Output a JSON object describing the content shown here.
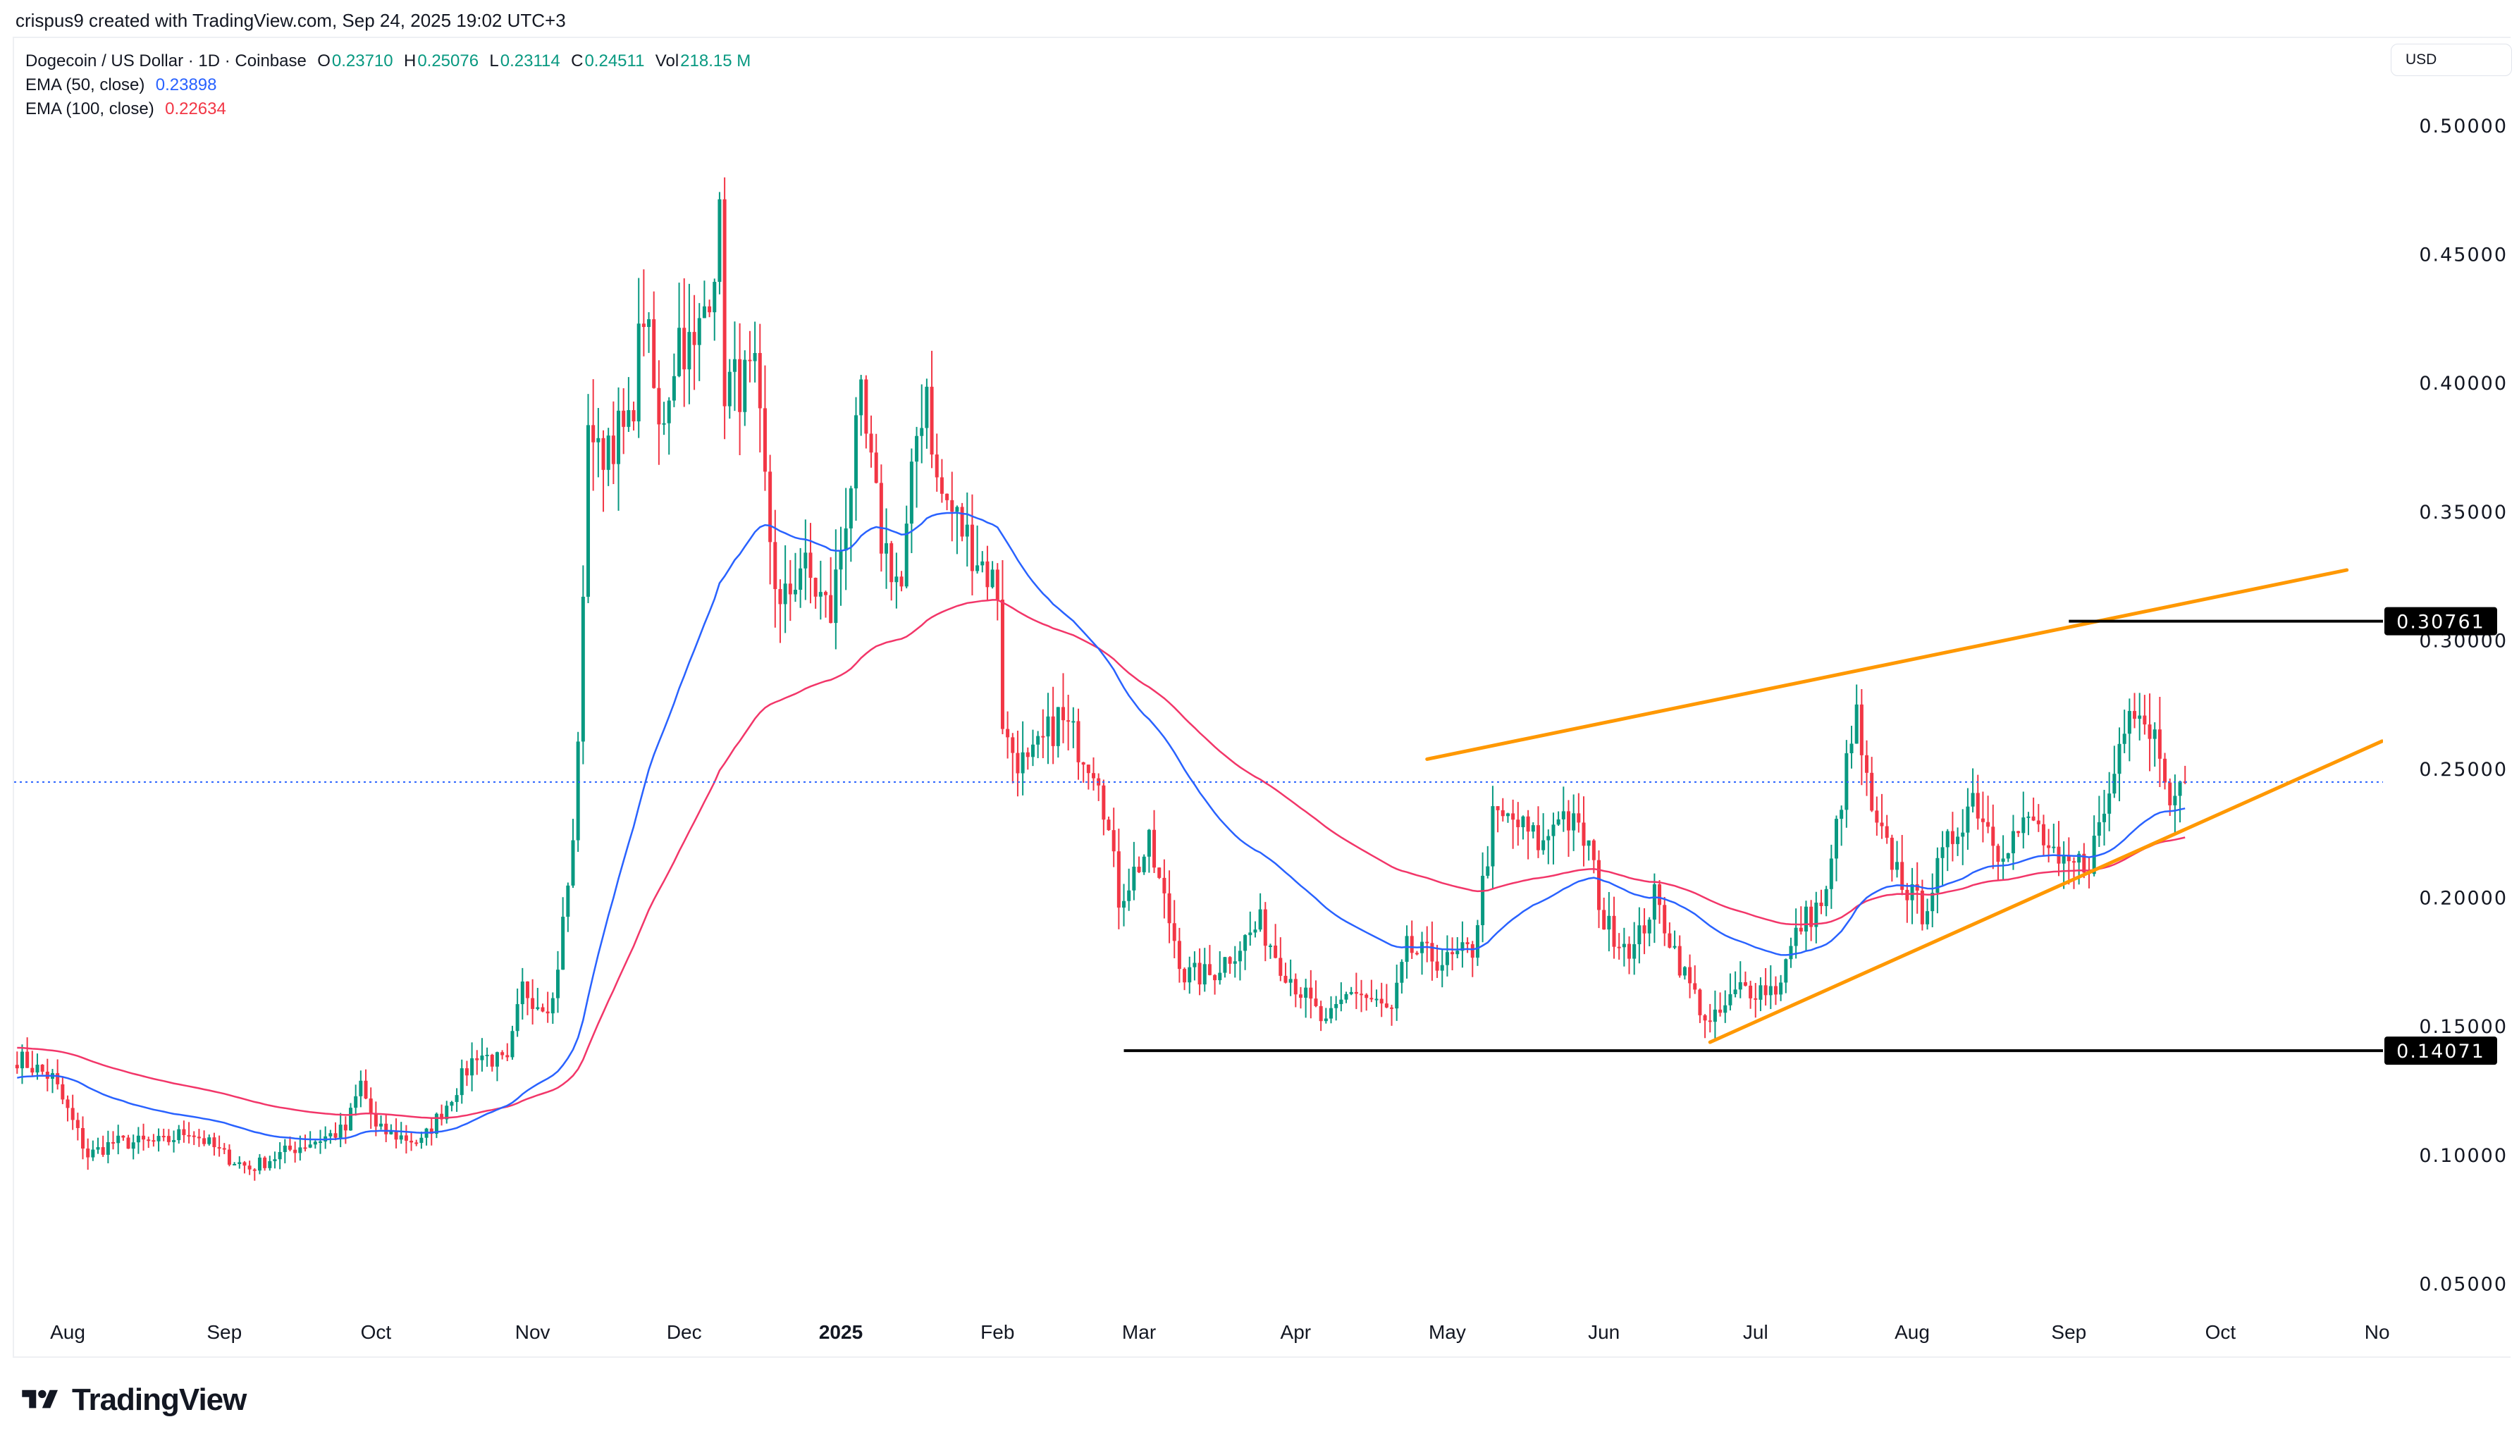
{
  "credit": "crispus9 created with TradingView.com, Sep 24, 2025 19:02 UTC+3",
  "legend": {
    "symbol": "Dogecoin / US Dollar · 1D · Coinbase",
    "o_label": "O",
    "o": "0.23710",
    "h_label": "H",
    "h": "0.25076",
    "l_label": "L",
    "l": "0.23114",
    "c_label": "C",
    "c": "0.24511",
    "vol_label": "Vol",
    "vol": "218.15 M",
    "ema50_label": "EMA (50, close)",
    "ema50": "0.23898",
    "ema100_label": "EMA (100, close)",
    "ema100": "0.22634"
  },
  "currency": "USD",
  "brand": "TradingView",
  "colors": {
    "up": "#089981",
    "down": "#f23645",
    "ema50": "#2962ff",
    "ema100": "#f23669",
    "trendline": "#ff9800",
    "level": "#000000"
  },
  "chart_data": {
    "type": "candlestick",
    "ylim": [
      0.03,
      0.52
    ],
    "yticks": [
      "0.50000",
      "0.45000",
      "0.40000",
      "0.35000",
      "0.30000",
      "0.25000",
      "0.20000",
      "0.15000",
      "0.10000",
      "0.05000"
    ],
    "xticks": [
      {
        "date": "2024-08-01",
        "label": "Aug"
      },
      {
        "date": "2024-09-01",
        "label": "Sep"
      },
      {
        "date": "2024-10-01",
        "label": "Oct"
      },
      {
        "date": "2024-11-01",
        "label": "Nov"
      },
      {
        "date": "2024-12-01",
        "label": "Dec"
      },
      {
        "date": "2025-01-01",
        "label": "2025",
        "bold": true
      },
      {
        "date": "2025-02-01",
        "label": "Feb"
      },
      {
        "date": "2025-03-01",
        "label": "Mar"
      },
      {
        "date": "2025-04-01",
        "label": "Apr"
      },
      {
        "date": "2025-05-01",
        "label": "May"
      },
      {
        "date": "2025-06-01",
        "label": "Jun"
      },
      {
        "date": "2025-07-01",
        "label": "Jul"
      },
      {
        "date": "2025-08-01",
        "label": "Aug"
      },
      {
        "date": "2025-09-01",
        "label": "Sep"
      },
      {
        "date": "2025-10-01",
        "label": "Oct"
      },
      {
        "date": "2025-11-01",
        "label": "No"
      }
    ],
    "close_path": [
      [
        "2024-07-22",
        0.138
      ],
      [
        "2024-07-29",
        0.13
      ],
      [
        "2024-08-05",
        0.1
      ],
      [
        "2024-08-10",
        0.105
      ],
      [
        "2024-08-20",
        0.105
      ],
      [
        "2024-08-25",
        0.11
      ],
      [
        "2024-09-01",
        0.1
      ],
      [
        "2024-09-06",
        0.095
      ],
      [
        "2024-09-15",
        0.103
      ],
      [
        "2024-09-25",
        0.11
      ],
      [
        "2024-09-28",
        0.128
      ],
      [
        "2024-10-01",
        0.11
      ],
      [
        "2024-10-10",
        0.105
      ],
      [
        "2024-10-15",
        0.12
      ],
      [
        "2024-10-21",
        0.14
      ],
      [
        "2024-10-27",
        0.135
      ],
      [
        "2024-10-30",
        0.165
      ],
      [
        "2024-11-02",
        0.16
      ],
      [
        "2024-11-05",
        0.16
      ],
      [
        "2024-11-07",
        0.19
      ],
      [
        "2024-11-09",
        0.22
      ],
      [
        "2024-11-11",
        0.31
      ],
      [
        "2024-11-12",
        0.39
      ],
      [
        "2024-11-14",
        0.37
      ],
      [
        "2024-11-16",
        0.38
      ],
      [
        "2024-11-20",
        0.38
      ],
      [
        "2024-11-23",
        0.43
      ],
      [
        "2024-11-26",
        0.38
      ],
      [
        "2024-11-30",
        0.42
      ],
      [
        "2024-12-03",
        0.41
      ],
      [
        "2024-12-05",
        0.43
      ],
      [
        "2024-12-08",
        0.46
      ],
      [
        "2024-12-09",
        0.4
      ],
      [
        "2024-12-15",
        0.4
      ],
      [
        "2024-12-18",
        0.34
      ],
      [
        "2024-12-20",
        0.31
      ],
      [
        "2024-12-24",
        0.33
      ],
      [
        "2024-12-30",
        0.31
      ],
      [
        "2025-01-02",
        0.35
      ],
      [
        "2025-01-05",
        0.39
      ],
      [
        "2025-01-09",
        0.34
      ],
      [
        "2025-01-13",
        0.32
      ],
      [
        "2025-01-16",
        0.38
      ],
      [
        "2025-01-18",
        0.4
      ],
      [
        "2025-01-20",
        0.36
      ],
      [
        "2025-01-26",
        0.34
      ],
      [
        "2025-02-01",
        0.32
      ],
      [
        "2025-02-02",
        0.27
      ],
      [
        "2025-02-03",
        0.26
      ],
      [
        "2025-02-07",
        0.25
      ],
      [
        "2025-02-13",
        0.27
      ],
      [
        "2025-02-21",
        0.25
      ],
      [
        "2025-02-25",
        0.2
      ],
      [
        "2025-03-03",
        0.22
      ],
      [
        "2025-03-10",
        0.17
      ],
      [
        "2025-03-15",
        0.17
      ],
      [
        "2025-03-25",
        0.19
      ],
      [
        "2025-03-29",
        0.175
      ],
      [
        "2025-04-07",
        0.15
      ],
      [
        "2025-04-12",
        0.165
      ],
      [
        "2025-04-20",
        0.155
      ],
      [
        "2025-04-23",
        0.18
      ],
      [
        "2025-05-01",
        0.175
      ],
      [
        "2025-05-06",
        0.18
      ],
      [
        "2025-05-10",
        0.23
      ],
      [
        "2025-05-14",
        0.23
      ],
      [
        "2025-05-20",
        0.22
      ],
      [
        "2025-05-23",
        0.235
      ],
      [
        "2025-05-29",
        0.22
      ],
      [
        "2025-06-01",
        0.19
      ],
      [
        "2025-06-07",
        0.18
      ],
      [
        "2025-06-11",
        0.2
      ],
      [
        "2025-06-17",
        0.17
      ],
      [
        "2025-06-22",
        0.15
      ],
      [
        "2025-06-28",
        0.165
      ],
      [
        "2025-07-05",
        0.165
      ],
      [
        "2025-07-10",
        0.19
      ],
      [
        "2025-07-15",
        0.2
      ],
      [
        "2025-07-18",
        0.24
      ],
      [
        "2025-07-21",
        0.27
      ],
      [
        "2025-07-24",
        0.23
      ],
      [
        "2025-08-01",
        0.2
      ],
      [
        "2025-08-03",
        0.195
      ],
      [
        "2025-08-08",
        0.22
      ],
      [
        "2025-08-13",
        0.24
      ],
      [
        "2025-08-18",
        0.22
      ],
      [
        "2025-08-25",
        0.23
      ],
      [
        "2025-08-30",
        0.21
      ],
      [
        "2025-09-05",
        0.215
      ],
      [
        "2025-09-09",
        0.24
      ],
      [
        "2025-09-13",
        0.28
      ],
      [
        "2025-09-16",
        0.27
      ],
      [
        "2025-09-19",
        0.26
      ],
      [
        "2025-09-22",
        0.235
      ],
      [
        "2025-09-24",
        0.245
      ]
    ],
    "last_price": 0.24511,
    "levels": [
      {
        "label": "0.30761",
        "price": 0.30761,
        "from": "2025-09-01"
      },
      {
        "label": "0.14071",
        "price": 0.14071,
        "from": "2025-02-26"
      }
    ],
    "trendlines": [
      {
        "from": [
          "2025-04-27",
          0.254
        ],
        "to": [
          "2025-10-26",
          0.3275
        ]
      },
      {
        "from": [
          "2025-06-22",
          0.144
        ],
        "to": [
          "2025-11-02",
          0.261
        ]
      }
    ]
  }
}
